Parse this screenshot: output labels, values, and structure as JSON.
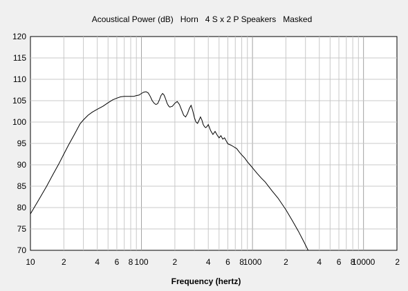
{
  "chart_data": {
    "type": "line",
    "title": "Acoustical Power (dB)   Horn   4 S x 2 P Speakers   Masked",
    "xlabel": "Frequency (hertz)",
    "ylabel": "",
    "xscale": "log",
    "xlim": [
      10,
      20000
    ],
    "ylim": [
      70,
      120
    ],
    "grid": true,
    "colors": {
      "background": "#f0f0f0",
      "plot_area": "#ffffff",
      "grid": "#c8c8c8",
      "grid_major": "#a0a0a0",
      "line": "#000000",
      "axis": "#000000"
    },
    "y_ticks": [
      "70",
      "75",
      "80",
      "85",
      "90",
      "95",
      "100",
      "105",
      "110",
      "115",
      "120"
    ],
    "x_tick_labels": [
      {
        "x": 10,
        "label": "10"
      },
      {
        "x": 20,
        "label": "2"
      },
      {
        "x": 40,
        "label": "4"
      },
      {
        "x": 60,
        "label": "6"
      },
      {
        "x": 80,
        "label": "8"
      },
      {
        "x": 100,
        "label": "100"
      },
      {
        "x": 200,
        "label": "2"
      },
      {
        "x": 400,
        "label": "4"
      },
      {
        "x": 600,
        "label": "6"
      },
      {
        "x": 800,
        "label": "8"
      },
      {
        "x": 1000,
        "label": "1000"
      },
      {
        "x": 2000,
        "label": "2"
      },
      {
        "x": 4000,
        "label": "4"
      },
      {
        "x": 6000,
        "label": "6"
      },
      {
        "x": 8000,
        "label": "8"
      },
      {
        "x": 10000,
        "label": "10000"
      },
      {
        "x": 20000,
        "label": "2"
      }
    ],
    "series": [
      {
        "x": [
          10,
          12,
          14,
          16,
          18,
          20,
          22,
          25,
          28,
          30,
          33,
          36,
          40,
          45,
          50,
          55,
          60,
          65,
          70,
          75,
          80,
          85,
          90,
          95,
          100,
          105,
          110,
          115,
          120,
          125,
          130,
          135,
          140,
          145,
          150,
          155,
          160,
          165,
          170,
          175,
          180,
          190,
          200,
          210,
          220,
          230,
          240,
          250,
          260,
          270,
          280,
          290,
          300,
          310,
          320,
          330,
          340,
          350,
          360,
          370,
          380,
          390,
          400,
          420,
          440,
          460,
          480,
          500,
          520,
          540,
          560,
          580,
          600,
          640,
          680,
          720,
          760,
          800,
          850,
          900,
          950,
          1000,
          1100,
          1200,
          1300,
          1500,
          1700,
          2000,
          2300,
          2600,
          2900,
          3200
        ],
        "y": [
          78.5,
          82.0,
          85.0,
          87.8,
          90.2,
          92.5,
          94.6,
          97.2,
          99.6,
          100.5,
          101.6,
          102.3,
          103.0,
          103.7,
          104.5,
          105.2,
          105.6,
          105.9,
          106.0,
          106.0,
          106.0,
          106.0,
          106.2,
          106.3,
          106.7,
          107.0,
          107.1,
          106.8,
          106.0,
          105.0,
          104.4,
          104.1,
          104.3,
          105.2,
          106.2,
          106.7,
          106.3,
          105.4,
          104.4,
          103.8,
          103.5,
          103.7,
          104.4,
          104.8,
          104.1,
          102.8,
          101.6,
          101.2,
          102.0,
          103.2,
          103.9,
          102.6,
          101.0,
          100.0,
          99.7,
          100.4,
          101.2,
          100.5,
          99.4,
          98.9,
          98.7,
          99.0,
          99.4,
          98.0,
          97.1,
          97.8,
          97.0,
          96.3,
          96.8,
          96.0,
          96.3,
          95.6,
          94.9,
          94.6,
          94.2,
          93.8,
          93.0,
          92.3,
          91.6,
          90.7,
          90.0,
          89.3,
          88.0,
          86.9,
          86.0,
          83.9,
          82.2,
          79.5,
          76.8,
          74.4,
          72.0,
          69.8
        ]
      }
    ]
  }
}
